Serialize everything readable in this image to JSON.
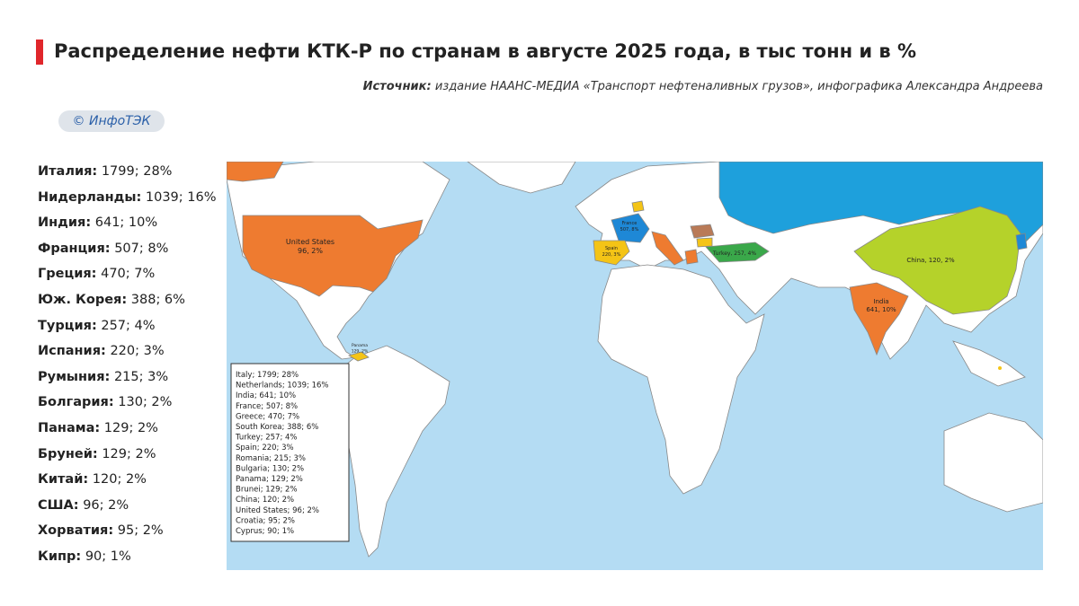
{
  "header": {
    "title": "Распределение нефти КТК-Р по странам в августе 2025 года, в тыс тонн и в %",
    "source_label": "Источник:",
    "source_text": "издание НААНС-МЕДИА «Транспорт нефтеналивных грузов», инфографика Александра Андреева",
    "logo": "© ИнфоТЭК"
  },
  "list": [
    {
      "name": "Италия:",
      "text": "1799; 28%"
    },
    {
      "name": "Нидерланды:",
      "text": "1039; 16%"
    },
    {
      "name": "Индия:",
      "text": "641; 10%"
    },
    {
      "name": "Франция:",
      "text": "507; 8%"
    },
    {
      "name": "Греция:",
      "text": "470; 7%"
    },
    {
      "name": "Юж. Корея:",
      "text": "388; 6%"
    },
    {
      "name": "Турция:",
      "text": "257; 4%"
    },
    {
      "name": "Испания:",
      "text": "220; 3%"
    },
    {
      "name": "Румыния:",
      "text": "215; 3%"
    },
    {
      "name": "Болгария:",
      "text": "130; 2%"
    },
    {
      "name": "Панама:",
      "text": "129; 2%"
    },
    {
      "name": "Бруней:",
      "text": "129; 2%"
    },
    {
      "name": "Китай:",
      "text": "120; 2%"
    },
    {
      "name": "США:",
      "text": "96; 2%"
    },
    {
      "name": "Хорватия:",
      "text": "95; 2%"
    },
    {
      "name": "Кипр:",
      "text": "90; 1%"
    }
  ],
  "map": {
    "legend": [
      "Italy; 1799; 28%",
      "Netherlands; 1039; 16%",
      "India; 641; 10%",
      "France; 507; 8%",
      "Greece; 470; 7%",
      "South Korea; 388; 6%",
      "Turkey; 257; 4%",
      "Spain; 220; 3%",
      "Romania; 215; 3%",
      "Bulgaria; 130; 2%",
      "Panama; 129; 2%",
      "Brunei; 129; 2%",
      "China; 120; 2%",
      "United States; 96; 2%",
      "Croatia; 95; 2%",
      "Cyprus; 90; 1%"
    ],
    "labels": [
      {
        "lines": [
          "United States",
          "96, 2%"
        ]
      },
      {
        "lines": [
          "China, 120, 2%"
        ]
      },
      {
        "lines": [
          "India",
          "641, 10%"
        ]
      },
      {
        "lines": [
          "Turkey, 257, 4%"
        ]
      },
      {
        "lines": [
          "France",
          "507, 8%"
        ]
      },
      {
        "lines": [
          "Spain",
          "220, 3%"
        ]
      },
      {
        "lines": [
          "Panama",
          "129, 2%"
        ]
      }
    ]
  }
}
